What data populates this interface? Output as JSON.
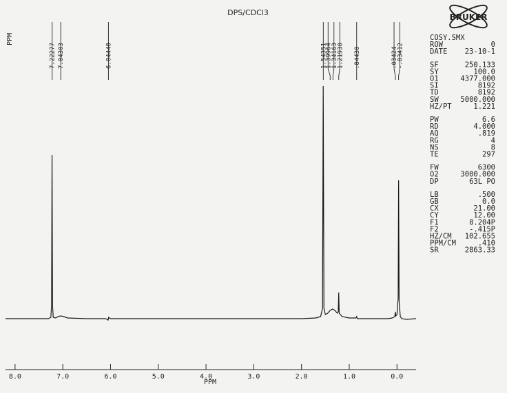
{
  "chart_data": {
    "type": "line",
    "title": "DPS/CDCl3",
    "ylabel": "PPM",
    "xlabel": "PPM",
    "color": "#1a1a1a",
    "xlim": [
      8.2,
      -0.4
    ],
    "ylim": [
      -10,
      350
    ],
    "xticks": [
      {
        "value": 8,
        "label": "8.0"
      },
      {
        "value": 7,
        "label": "7.0"
      },
      {
        "value": 6,
        "label": "6.0"
      },
      {
        "value": 5,
        "label": "5.0"
      },
      {
        "value": 4,
        "label": "4.0"
      },
      {
        "value": 3,
        "label": "3.0"
      },
      {
        "value": 2,
        "label": "2.0"
      },
      {
        "value": 1,
        "label": "1.0"
      },
      {
        "value": 0,
        "label": "0.0"
      }
    ],
    "peaks": [
      7.22277,
      7.04303,
      6.04448,
      1.54351,
      1.39964,
      1.34163,
      {
        "value": 1.2193,
        "label": "1.21930"
      },
      {
        "value": 0.8443,
        "label": ".84430"
      },
      {
        "value": 0.03424,
        "label": ".03424"
      },
      {
        "value": -0.03412,
        "label": "-.03412"
      }
    ],
    "x": [
      8.2,
      7.5,
      7.3,
      7.25,
      7.235,
      7.225,
      7.215,
      7.2,
      7.15,
      7.1,
      7.04,
      6.98,
      6.9,
      6.5,
      6.1,
      6.05,
      6.04,
      6.0,
      5.0,
      4.0,
      3.0,
      2.0,
      1.7,
      1.6,
      1.56,
      1.545,
      1.53,
      1.5,
      1.45,
      1.4,
      1.35,
      1.3,
      1.25,
      1.23,
      1.22,
      1.21,
      1.15,
      1.0,
      0.86,
      0.845,
      0.83,
      0.5,
      0.2,
      0.1,
      0.045,
      0.035,
      0.025,
      0.0,
      -0.025,
      -0.034,
      -0.045,
      -0.07,
      -0.1,
      -0.2,
      -0.4
    ],
    "values": [
      0,
      0,
      0,
      2,
      20,
      238,
      20,
      2,
      1,
      3,
      4,
      3,
      1,
      0,
      0,
      -2,
      2,
      0,
      0,
      0,
      0,
      0,
      1,
      3,
      15,
      338,
      15,
      6,
      8,
      12,
      14,
      12,
      8,
      10,
      38,
      8,
      3,
      1,
      1,
      3,
      0,
      0,
      0,
      1,
      3,
      10,
      4,
      6,
      30,
      201,
      25,
      3,
      0,
      -1,
      0
    ]
  },
  "logo": "BRUKER",
  "params": [
    [
      [
        "COSY.SMX"
      ],
      [
        "ROW",
        "0"
      ],
      [
        "DATE",
        "23-10-1"
      ]
    ],
    [
      [
        "SF",
        "250.133"
      ],
      [
        "SY",
        "100.0"
      ],
      [
        "O1",
        "4377.000"
      ],
      [
        "SI",
        "8192"
      ],
      [
        "TD",
        "8192"
      ],
      [
        "SW",
        "5000.000"
      ],
      [
        "HZ/PT",
        "1.221"
      ]
    ],
    [
      [
        "PW",
        "6.6"
      ],
      [
        "RD",
        "4.000"
      ],
      [
        "AQ",
        ".819"
      ],
      [
        "RG",
        "4"
      ],
      [
        "NS",
        "8"
      ],
      [
        "TE",
        "297"
      ]
    ],
    [
      [
        "FW",
        "6300"
      ],
      [
        "O2",
        "3000.000"
      ],
      [
        "DP",
        "63L PO"
      ]
    ],
    [
      [
        "LB",
        ".500"
      ],
      [
        "GB",
        "0.0"
      ],
      [
        "CX",
        "21.00"
      ],
      [
        "CY",
        "12.00"
      ],
      [
        "F1",
        "8.204P"
      ],
      [
        "F2",
        "-.415P"
      ],
      [
        "HZ/CM",
        "102.655"
      ],
      [
        "PPM/CM",
        ".410"
      ],
      [
        "SR",
        "2863.33"
      ]
    ]
  ]
}
